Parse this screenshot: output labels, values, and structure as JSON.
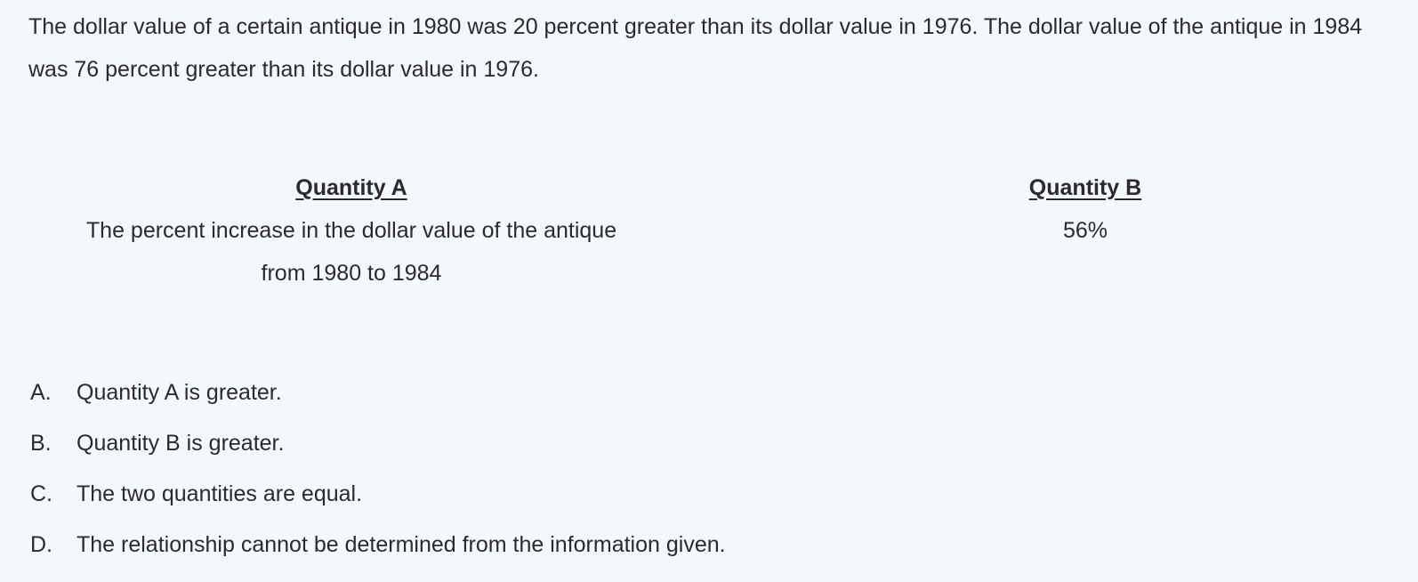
{
  "question": {
    "stem": "The dollar value of a certain antique in 1980 was 20 percent greater than its dollar value in 1976. The dollar value of the antique in 1984 was 76 percent greater than its dollar value in 1976."
  },
  "quantity_a": {
    "heading": "Quantity A",
    "text": "The percent increase in the dollar value of the antique from 1980 to 1984"
  },
  "quantity_b": {
    "heading": "Quantity B",
    "text": "56%"
  },
  "options": [
    {
      "letter": "A.",
      "text": "Quantity A is greater."
    },
    {
      "letter": "B.",
      "text": "Quantity B is greater."
    },
    {
      "letter": "C.",
      "text": "The two quantities are equal."
    },
    {
      "letter": "D.",
      "text": "The relationship cannot be determined from the information given."
    }
  ]
}
